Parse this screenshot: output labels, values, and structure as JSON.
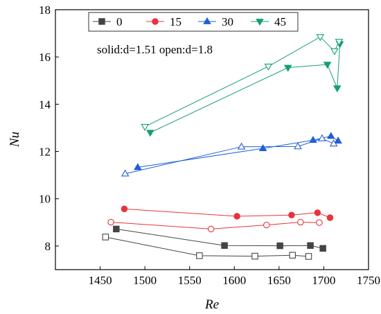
{
  "chart_data": {
    "type": "line",
    "xlabel": "Re",
    "ylabel": "Nu",
    "xlim": [
      1400,
      1750
    ],
    "ylim": [
      7,
      18
    ],
    "xticks": [
      1450,
      1500,
      1550,
      1600,
      1650,
      1700,
      1750
    ],
    "yticks": [
      8,
      10,
      12,
      14,
      16,
      18
    ],
    "annotation": "solid:d=1.51 open:d=1.8",
    "legend": {
      "placement": "top",
      "entries": [
        "0",
        "15",
        "30",
        "45"
      ]
    },
    "series": [
      {
        "name": "0",
        "color": "#444444",
        "marker": "square",
        "fill": "solid",
        "x": [
          1468,
          1589,
          1651,
          1685,
          1699
        ],
        "y": [
          8.72,
          8.02,
          8.01,
          8.02,
          7.9
        ]
      },
      {
        "name": "0",
        "color": "#444444",
        "marker": "square",
        "fill": "open",
        "x": [
          1456,
          1561,
          1623,
          1665,
          1683
        ],
        "y": [
          8.38,
          7.59,
          7.57,
          7.61,
          7.56
        ]
      },
      {
        "name": "15",
        "color": "#e8343a",
        "marker": "circle",
        "fill": "solid",
        "x": [
          1477,
          1603,
          1664,
          1693,
          1707
        ],
        "y": [
          9.57,
          9.26,
          9.31,
          9.41,
          9.2
        ]
      },
      {
        "name": "15",
        "color": "#e8343a",
        "marker": "circle",
        "fill": "open",
        "x": [
          1462,
          1574,
          1636,
          1674,
          1695
        ],
        "y": [
          9.01,
          8.72,
          8.89,
          9.01,
          8.99
        ]
      },
      {
        "name": "30",
        "color": "#1f5fd8",
        "marker": "triangle-up",
        "fill": "solid",
        "x": [
          1492,
          1632,
          1688,
          1708,
          1716
        ],
        "y": [
          11.33,
          12.13,
          12.48,
          12.65,
          12.45
        ]
      },
      {
        "name": "30",
        "color": "#1f5fd8",
        "marker": "triangle-up",
        "fill": "open",
        "x": [
          1478,
          1608,
          1671,
          1698,
          1711
        ],
        "y": [
          11.06,
          12.2,
          12.21,
          12.55,
          12.33
        ]
      },
      {
        "name": "45",
        "color": "#14a06e",
        "marker": "triangle-down",
        "fill": "solid",
        "x": [
          1506,
          1660,
          1704,
          1715,
          1718
        ],
        "y": [
          12.8,
          15.55,
          15.68,
          14.68,
          16.55
        ]
      },
      {
        "name": "45",
        "color": "#14a06e",
        "marker": "triangle-down",
        "fill": "open",
        "x": [
          1500,
          1638,
          1696,
          1712,
          1717
        ],
        "y": [
          13.05,
          15.6,
          16.85,
          16.25,
          16.65
        ]
      }
    ]
  }
}
